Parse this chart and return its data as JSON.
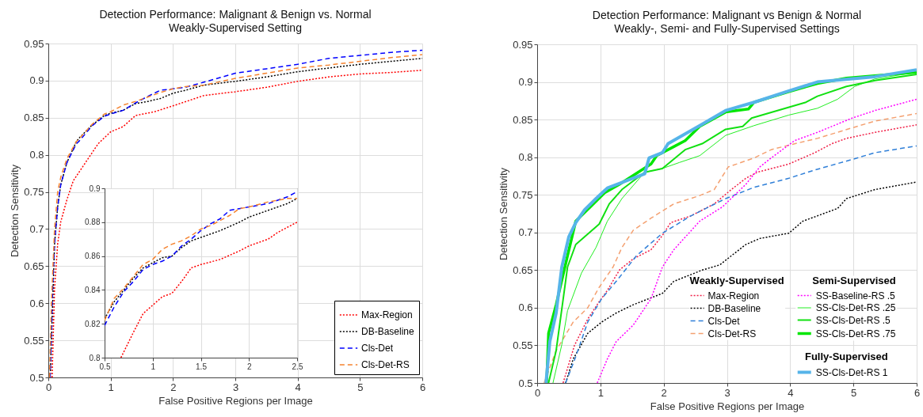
{
  "chart_data": [
    {
      "type": "line",
      "title": "Detection Performance: Malignant & Benign vs. Normal",
      "subtitle": "Weakly-Supervised Setting",
      "xlabel": "False Positive Regions per Image",
      "ylabel": "Detection Sensitivity",
      "xlim": [
        0,
        6
      ],
      "ylim": [
        0.5,
        0.95
      ],
      "xticks": [
        0,
        1,
        2,
        3,
        4,
        5,
        6
      ],
      "yticks": [
        0.5,
        0.55,
        0.6,
        0.65,
        0.7,
        0.75,
        0.8,
        0.85,
        0.9,
        0.95
      ],
      "grid": true,
      "legend": "bottom right",
      "series": [
        {
          "name": "Max-Region",
          "color": "#ff0000",
          "line_style": "dotted",
          "x": [
            0.06,
            0.1,
            0.15,
            0.2,
            0.3,
            0.4,
            0.6,
            0.8,
            1.0,
            1.2,
            1.4,
            1.7,
            2.0,
            2.5,
            3,
            3.5,
            4,
            4.5,
            5,
            5.5,
            6
          ],
          "values": [
            0.5,
            0.62,
            0.68,
            0.71,
            0.74,
            0.765,
            0.79,
            0.815,
            0.831,
            0.838,
            0.853,
            0.858,
            0.866,
            0.88,
            0.885,
            0.891,
            0.899,
            0.905,
            0.909,
            0.911,
            0.914
          ]
        },
        {
          "name": "DB-Baseline",
          "color": "#000000",
          "line_style": "dotted",
          "x": [
            0.03,
            0.07,
            0.1,
            0.15,
            0.2,
            0.3,
            0.45,
            0.5,
            0.7,
            0.9,
            1.0,
            1.2,
            1.4,
            1.6,
            1.8,
            2.0,
            2.2,
            2.5,
            3,
            3.5,
            4,
            4.5,
            5,
            5.5,
            6
          ],
          "values": [
            0.5,
            0.6,
            0.68,
            0.73,
            0.76,
            0.79,
            0.818,
            0.823,
            0.84,
            0.853,
            0.856,
            0.86,
            0.869,
            0.872,
            0.876,
            0.883,
            0.887,
            0.894,
            0.899,
            0.905,
            0.912,
            0.917,
            0.922,
            0.926,
            0.93
          ]
        },
        {
          "name": "Cls-Det",
          "color": "#0000ff",
          "line_style": "dashed",
          "x": [
            0.03,
            0.07,
            0.1,
            0.15,
            0.2,
            0.3,
            0.45,
            0.5,
            0.7,
            0.9,
            1.0,
            1.2,
            1.4,
            1.6,
            1.8,
            2.0,
            2.2,
            2.5,
            3,
            3.5,
            4,
            4.5,
            5,
            5.5,
            6
          ],
          "values": [
            0.5,
            0.62,
            0.68,
            0.73,
            0.76,
            0.79,
            0.815,
            0.819,
            0.839,
            0.852,
            0.855,
            0.86,
            0.87,
            0.879,
            0.887,
            0.889,
            0.891,
            0.898,
            0.91,
            0.916,
            0.922,
            0.93,
            0.934,
            0.938,
            0.941
          ]
        },
        {
          "name": "Cls-Det-RS",
          "color": "#f5822e",
          "line_style": "dashed",
          "x": [
            0.02,
            0.05,
            0.1,
            0.15,
            0.2,
            0.3,
            0.45,
            0.5,
            0.7,
            0.9,
            1.0,
            1.2,
            1.4,
            1.6,
            1.8,
            2.0,
            2.2,
            2.5,
            3,
            3.5,
            4,
            4.5,
            5,
            5.5,
            6
          ],
          "values": [
            0.5,
            0.6,
            0.7,
            0.75,
            0.77,
            0.795,
            0.818,
            0.822,
            0.841,
            0.855,
            0.858,
            0.867,
            0.872,
            0.878,
            0.884,
            0.889,
            0.892,
            0.894,
            0.903,
            0.91,
            0.917,
            0.921,
            0.926,
            0.931,
            0.935
          ]
        }
      ]
    },
    {
      "type": "line",
      "xlim": [
        0.5,
        2.5
      ],
      "ylim": [
        0.8,
        0.9
      ],
      "xticks": [
        0.5,
        1,
        1.5,
        2,
        2.5
      ],
      "yticks": [
        0.8,
        0.82,
        0.84,
        0.86,
        0.88,
        0.9
      ],
      "grid": true,
      "series": [
        {
          "color": "#ff0000",
          "line_style": "dotted",
          "x": [
            0.67,
            0.8,
            0.9,
            1.0,
            1.1,
            1.2,
            1.3,
            1.4,
            1.5,
            1.7,
            1.9,
            2.0,
            2.2,
            2.3,
            2.5
          ],
          "values": [
            0.8,
            0.815,
            0.826,
            0.831,
            0.836,
            0.838,
            0.845,
            0.853,
            0.855,
            0.858,
            0.863,
            0.866,
            0.87,
            0.874,
            0.88
          ]
        },
        {
          "color": "#000000",
          "line_style": "dotted",
          "x": [
            0.5,
            0.6,
            0.7,
            0.8,
            0.9,
            1.0,
            1.1,
            1.2,
            1.3,
            1.4,
            1.5,
            1.7,
            1.9,
            2.0,
            2.2,
            2.4,
            2.5
          ],
          "values": [
            0.823,
            0.833,
            0.84,
            0.847,
            0.853,
            0.856,
            0.859,
            0.86,
            0.865,
            0.869,
            0.871,
            0.875,
            0.88,
            0.883,
            0.887,
            0.891,
            0.894
          ]
        },
        {
          "color": "#0000ff",
          "line_style": "dashed",
          "x": [
            0.5,
            0.6,
            0.7,
            0.8,
            0.9,
            1.0,
            1.1,
            1.2,
            1.3,
            1.4,
            1.5,
            1.6,
            1.7,
            1.8,
            1.9,
            2.0,
            2.2,
            2.4,
            2.5
          ],
          "values": [
            0.819,
            0.83,
            0.839,
            0.845,
            0.852,
            0.855,
            0.857,
            0.86,
            0.866,
            0.87,
            0.875,
            0.879,
            0.882,
            0.887,
            0.888,
            0.889,
            0.891,
            0.895,
            0.898
          ]
        },
        {
          "color": "#f5822e",
          "line_style": "dashed",
          "x": [
            0.5,
            0.6,
            0.7,
            0.8,
            0.9,
            1.0,
            1.1,
            1.2,
            1.3,
            1.4,
            1.5,
            1.6,
            1.7,
            1.8,
            1.9,
            2.0,
            2.2,
            2.4,
            2.5
          ],
          "values": [
            0.822,
            0.835,
            0.841,
            0.848,
            0.855,
            0.858,
            0.864,
            0.867,
            0.869,
            0.872,
            0.876,
            0.878,
            0.881,
            0.884,
            0.888,
            0.889,
            0.892,
            0.894,
            0.894
          ]
        }
      ]
    },
    {
      "type": "line",
      "title": "Detection Performance: Malignant vs Benign & Normal",
      "subtitle": "Weakly-, Semi- and Fully-Supervised Settings",
      "xlabel": "False Positive Regions per Image",
      "ylabel": "Detection Sensitivity",
      "xlim": [
        0,
        6
      ],
      "ylim": [
        0.5,
        0.95
      ],
      "xticks": [
        0,
        1,
        2,
        3,
        4,
        5,
        6
      ],
      "yticks": [
        0.5,
        0.55,
        0.6,
        0.65,
        0.7,
        0.75,
        0.8,
        0.85,
        0.9,
        0.95
      ],
      "grid": true,
      "legend": "bottom right",
      "annotations": [
        "Weakly-Supervised",
        "Semi-Supervised",
        "Fully-Supervised"
      ],
      "series": [
        {
          "name": "Max-Region",
          "color": "#f01e46",
          "line_style": "dotted",
          "x": [
            0.41,
            0.59,
            0.8,
            0.98,
            1.11,
            1.3,
            1.52,
            1.8,
            1.98,
            2.11,
            2.43,
            2.8,
            3.07,
            3.3,
            3.48,
            3.98,
            4.39,
            4.66,
            4.89,
            5.34,
            6
          ],
          "values": [
            0.5,
            0.55,
            0.585,
            0.608,
            0.623,
            0.65,
            0.665,
            0.677,
            0.696,
            0.713,
            0.722,
            0.738,
            0.757,
            0.772,
            0.78,
            0.791,
            0.806,
            0.818,
            0.825,
            0.833,
            0.843
          ]
        },
        {
          "name": "DB-Baseline",
          "color": "#000000",
          "line_style": "dotted",
          "x": [
            0.45,
            0.57,
            0.8,
            1.02,
            1.25,
            1.52,
            1.98,
            2.16,
            2.61,
            2.89,
            3.07,
            3.3,
            3.52,
            3.98,
            4.2,
            4.43,
            4.75,
            4.89,
            5.34,
            6
          ],
          "values": [
            0.5,
            0.532,
            0.566,
            0.581,
            0.593,
            0.604,
            0.619,
            0.635,
            0.65,
            0.657,
            0.669,
            0.684,
            0.692,
            0.699,
            0.715,
            0.722,
            0.732,
            0.745,
            0.757,
            0.767
          ]
        },
        {
          "name": "Cls-Det",
          "color": "#2f7fd8",
          "line_style": "dashed",
          "x": [
            0.45,
            0.61,
            0.8,
            1.02,
            1.25,
            1.57,
            1.98,
            2.43,
            2.98,
            3.43,
            3.98,
            4.39,
            4.98,
            5.34,
            6
          ],
          "values": [
            0.5,
            0.535,
            0.581,
            0.612,
            0.635,
            0.669,
            0.699,
            0.722,
            0.745,
            0.76,
            0.772,
            0.783,
            0.797,
            0.806,
            0.815
          ]
        },
        {
          "name": "Cls-Det-RS",
          "color": "#f4a070",
          "line_style": "dashed",
          "x": [
            0.11,
            0.3,
            0.57,
            0.8,
            0.98,
            1.2,
            1.34,
            1.52,
            1.8,
            2.16,
            2.57,
            2.8,
            3.02,
            3.43,
            3.7,
            3.98,
            4.43,
            4.98,
            5.34,
            6
          ],
          "values": [
            0.5,
            0.543,
            0.581,
            0.6,
            0.627,
            0.654,
            0.68,
            0.703,
            0.719,
            0.738,
            0.749,
            0.757,
            0.787,
            0.799,
            0.81,
            0.816,
            0.825,
            0.839,
            0.848,
            0.858
          ]
        },
        {
          "name": "SS-Baseline-RS .5",
          "color": "#ff00ff",
          "line_style": "dotted",
          "x": [
            0.95,
            1.11,
            1.25,
            1.52,
            1.8,
            1.98,
            2.16,
            2.57,
            2.93,
            3.3,
            3.52,
            3.7,
            4.07,
            4.43,
            4.98,
            5.34,
            6
          ],
          "values": [
            0.5,
            0.532,
            0.555,
            0.577,
            0.612,
            0.654,
            0.677,
            0.715,
            0.734,
            0.764,
            0.787,
            0.799,
            0.822,
            0.833,
            0.852,
            0.862,
            0.877
          ]
        },
        {
          "name": "SS-Cls-Det-RS .25",
          "color": "#22ee22",
          "line_style": "solid",
          "x": [
            0.25,
            0.39,
            0.48,
            0.7,
            0.93,
            1.11,
            1.34,
            1.7,
            1.98,
            2.25,
            2.57,
            2.98,
            3.43,
            3.98,
            4.43,
            4.75,
            5.02,
            5.34,
            6
          ],
          "values": [
            0.5,
            0.551,
            0.596,
            0.646,
            0.68,
            0.715,
            0.745,
            0.78,
            0.785,
            0.793,
            0.802,
            0.829,
            0.842,
            0.856,
            0.865,
            0.877,
            0.894,
            0.904,
            0.913
          ]
        },
        {
          "name": "SS-Cls-Det-RS .5",
          "color": "#11e011",
          "line_style": "solid",
          "x": [
            0.18,
            0.3,
            0.48,
            0.61,
            0.98,
            1.14,
            1.34,
            1.7,
            1.98,
            2.34,
            2.61,
            2.98,
            3.25,
            3.39,
            4.25,
            4.43,
            4.89,
            5.34,
            6
          ],
          "values": [
            0.5,
            0.543,
            0.654,
            0.684,
            0.711,
            0.738,
            0.757,
            0.78,
            0.785,
            0.81,
            0.818,
            0.837,
            0.841,
            0.852,
            0.873,
            0.881,
            0.894,
            0.902,
            0.91
          ]
        },
        {
          "name": "SS-Cls-Det-RS .75",
          "color": "#00e600",
          "line_style": "solid",
          "x": [
            0.15,
            0.18,
            0.3,
            0.48,
            0.61,
            0.84,
            1.07,
            1.3,
            1.8,
            1.89,
            2.16,
            2.34,
            2.57,
            2.98,
            3.34,
            3.43,
            3.98,
            4.43,
            4.89,
            6
          ],
          "values": [
            0.5,
            0.566,
            0.604,
            0.669,
            0.715,
            0.734,
            0.753,
            0.764,
            0.791,
            0.802,
            0.814,
            0.822,
            0.841,
            0.86,
            0.864,
            0.873,
            0.887,
            0.898,
            0.905,
            0.913
          ]
        },
        {
          "name": "SS-Cls-Det-RS 1",
          "color": "#56b4e9",
          "line_style": "solid",
          "x": [
            0.14,
            0.2,
            0.3,
            0.39,
            0.5,
            0.61,
            0.75,
            0.93,
            1.11,
            1.7,
            1.77,
            1.98,
            2.07,
            2.57,
            2.98,
            3.43,
            3.98,
            4.43,
            5.34,
            6
          ],
          "values": [
            0.5,
            0.555,
            0.593,
            0.654,
            0.694,
            0.713,
            0.73,
            0.745,
            0.759,
            0.778,
            0.799,
            0.806,
            0.818,
            0.842,
            0.862,
            0.873,
            0.888,
            0.9,
            0.907,
            0.916
          ]
        }
      ]
    }
  ]
}
